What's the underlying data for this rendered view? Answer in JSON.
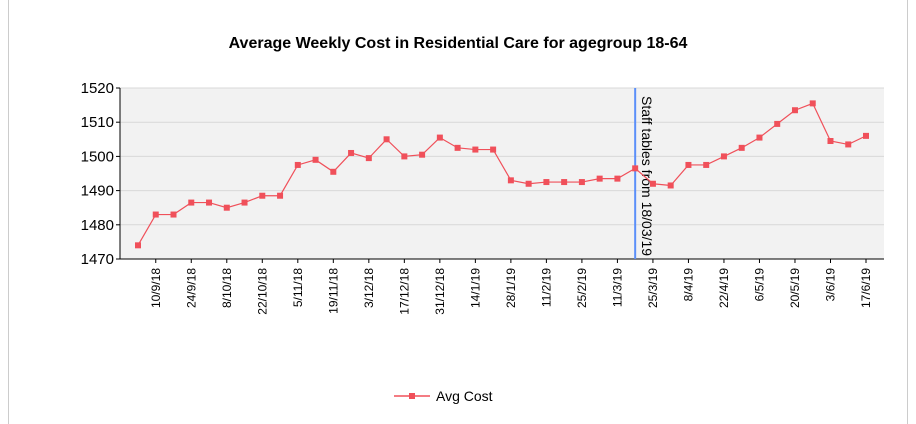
{
  "chart_data": {
    "type": "line",
    "title": "Average Weekly Cost in Residential Care for agegroup 18-64",
    "categories": [
      null,
      "10/9/18",
      null,
      "24/9/18",
      null,
      "8/10/18",
      null,
      "22/10/18",
      null,
      "5/11/18",
      null,
      "19/11/18",
      null,
      "3/12/18",
      null,
      "17/12/18",
      null,
      "31/12/18",
      null,
      "14/1/19",
      null,
      "28/1/19",
      null,
      "11/2/19",
      null,
      "25/2/19",
      null,
      "11/3/19",
      null,
      "25/3/19",
      null,
      "8/4/19",
      null,
      "22/4/19",
      null,
      "6/5/19",
      null,
      "20/5/19",
      null,
      "3/6/19",
      null,
      "17/6/19"
    ],
    "series": [
      {
        "name": "Avg Cost",
        "color": "#f0505a",
        "values": [
          1474,
          1483,
          1483,
          1486.5,
          1486.5,
          1485,
          1486.5,
          1488.5,
          1488.5,
          1497.5,
          1499,
          1495.5,
          1501,
          1499.5,
          1505,
          1500,
          1500.5,
          1505.5,
          1502.5,
          1502,
          1502,
          1493,
          1492,
          1492.5,
          1492.5,
          1492.5,
          1493.5,
          1493.5,
          1496.5,
          1492,
          1491.5,
          1497.5,
          1497.5,
          1500,
          1502.5,
          1505.5,
          1509.5,
          1513.5,
          1515.5,
          1504.5,
          1503.5,
          1506
        ]
      }
    ],
    "ylim": [
      1470,
      1520
    ],
    "yticks": [
      1470,
      1480,
      1490,
      1500,
      1510,
      1520
    ],
    "grid": true,
    "annotation": {
      "text": "Staff tables from 18/03/19",
      "color": "#5b8ff9"
    },
    "legend": "bottom"
  }
}
